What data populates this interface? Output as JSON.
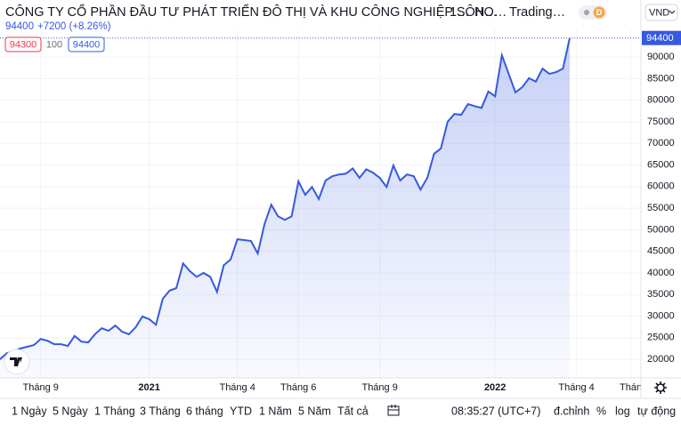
{
  "header": {
    "title": "CÔNG TY CỔ PHẦN ĐẦU TƯ PHÁT TRIỂN ĐÔ THỊ VÀ KHU CÔNG NGHIỆP SÔN…",
    "interval": "1…",
    "exchange": "HO…",
    "source": "Trading…",
    "badge": "D",
    "currency": "VND",
    "price": "94400",
    "change": "+7200 (+8.26%)",
    "bid": "94300",
    "spread": "100",
    "ask": "94400"
  },
  "toolbar": {
    "ranges": [
      "1 Ngày",
      "5 Ngày",
      "1 Tháng",
      "3 Tháng",
      "6 tháng",
      "YTD",
      "1 Năm",
      "5 Năm",
      "Tất cả"
    ],
    "time": "08:35:27 (UTC+7)",
    "options": [
      "đ.chỉnh",
      "%",
      "log",
      "tự động"
    ]
  },
  "chart_data": {
    "type": "area",
    "color": "#3559e0",
    "categories": [
      null,
      null,
      null,
      null,
      null,
      null,
      "Tháng 9",
      null,
      null,
      null,
      null,
      null,
      null,
      null,
      null,
      null,
      null,
      null,
      null,
      null,
      null,
      null,
      "2021",
      null,
      null,
      null,
      null,
      null,
      null,
      null,
      null,
      null,
      null,
      null,
      null,
      "Tháng 4",
      null,
      null,
      null,
      null,
      null,
      null,
      null,
      null,
      "Tháng 6",
      null,
      null,
      null,
      null,
      null,
      null,
      null,
      null,
      null,
      null,
      null,
      "Tháng 9",
      null,
      null,
      null,
      null,
      null,
      null,
      null,
      null,
      null,
      null,
      null,
      null,
      null,
      null,
      null,
      null,
      "2022",
      null,
      null,
      null,
      null,
      null,
      null,
      null,
      null,
      null,
      null,
      null,
      "Tháng 4",
      null,
      null,
      null,
      null,
      null,
      null,
      null,
      "Thán"
    ],
    "values": [
      20000,
      21400,
      21900,
      22500,
      22900,
      23300,
      24700,
      24300,
      23500,
      23500,
      23100,
      25400,
      24100,
      23900,
      25800,
      27200,
      26600,
      27800,
      26400,
      25800,
      27400,
      29900,
      29300,
      28000,
      34000,
      35900,
      36500,
      42200,
      40400,
      39100,
      40000,
      39100,
      35600,
      41800,
      43100,
      47800,
      47600,
      47400,
      44500,
      51300,
      55800,
      53100,
      52300,
      53100,
      61200,
      58100,
      59900,
      57100,
      61400,
      62400,
      62800,
      63000,
      64200,
      62000,
      64000,
      63200,
      62000,
      59900,
      64900,
      61400,
      62800,
      62400,
      59300,
      62000,
      67600,
      68800,
      75000,
      76800,
      76600,
      79100,
      78600,
      78200,
      82000,
      80900,
      90400,
      86100,
      81800,
      83000,
      85100,
      84300,
      87300,
      86100,
      86500,
      87300,
      94400,
      null,
      null,
      null,
      null,
      null,
      null,
      null,
      null,
      null
    ],
    "ylim": [
      15700,
      96400
    ],
    "yticks": [
      20000,
      25000,
      30000,
      35000,
      40000,
      45000,
      50000,
      55000,
      60000,
      65000,
      70000,
      75000,
      80000,
      85000,
      90000
    ],
    "grid": true
  }
}
